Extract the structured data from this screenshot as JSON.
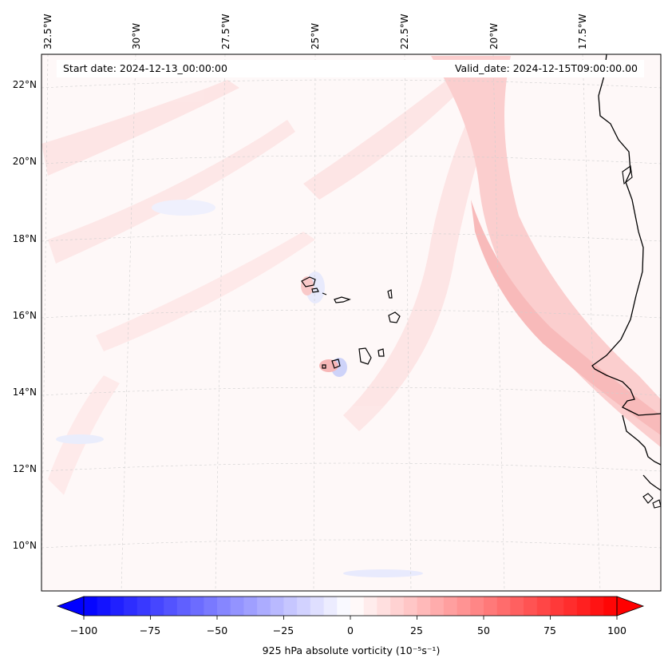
{
  "map": {
    "start_date": "Start date: 2024-12-13_00:00:00",
    "valid_date": "Valid_date: 2024-12-15T09:00:00.00",
    "lon_labels": [
      "32.5°W",
      "30°W",
      "27.5°W",
      "25°W",
      "22.5°W",
      "20°W",
      "17.5°W"
    ],
    "lat_labels": [
      "22°N",
      "20°N",
      "18°N",
      "16°N",
      "14°N",
      "12°N",
      "10°N"
    ],
    "features": [
      "Cape Verde islands",
      "West African coastline"
    ],
    "colors": {
      "coast": "#000000",
      "grid": "#c8c8c8",
      "positive": "#ff0000",
      "negative": "#0000ff"
    }
  },
  "colorbar": {
    "ticks": [
      "−100",
      "−75",
      "−50",
      "−25",
      "0",
      "25",
      "50",
      "75",
      "100"
    ],
    "tick_values": [
      -100,
      -75,
      -50,
      -25,
      0,
      25,
      50,
      75,
      100
    ],
    "label": "925 hPa absolute vorticity (10⁻⁵s⁻¹)",
    "vmin": -100,
    "vmax": 100,
    "levels": 40
  }
}
